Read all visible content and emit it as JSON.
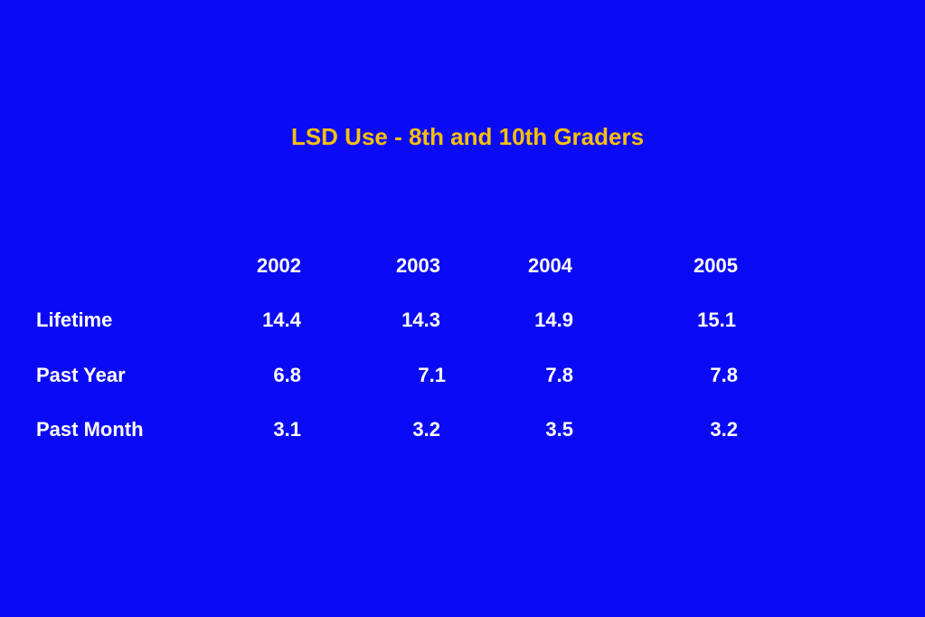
{
  "slide": {
    "title": "LSD Use - 8th and 10th Graders"
  },
  "table": {
    "columns": [
      "2002",
      "2003",
      "2004",
      "2005"
    ],
    "rows": [
      {
        "label": "Lifetime",
        "values": [
          "14.4",
          "14.3",
          "14.9",
          "15.1"
        ]
      },
      {
        "label": "Past Year",
        "values": [
          "6.8",
          "7.1",
          "7.8",
          "7.8"
        ]
      },
      {
        "label": "Past Month",
        "values": [
          "3.1",
          "3.2",
          "3.5",
          "3.2"
        ]
      }
    ]
  },
  "colors": {
    "background": "#0a0af7",
    "title": "#ffc000",
    "text": "#ffffff"
  }
}
